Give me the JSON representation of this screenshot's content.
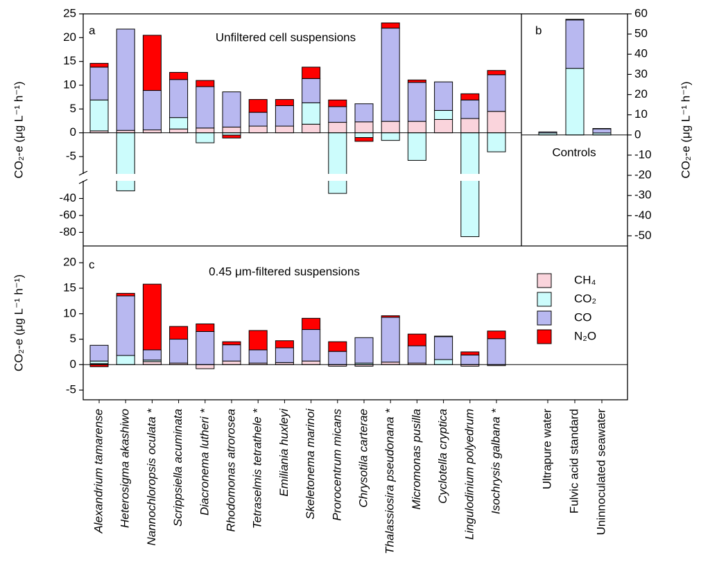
{
  "chart_data": [
    {
      "type": "bar",
      "stacked": true,
      "panel_label": "a",
      "title": "Unfiltered cell suspensions",
      "ylabel": "CO₂-e (μg L⁻¹ h⁻¹)",
      "categories": [
        "Alexandrium tamarense",
        "Heterosigma akashiwo",
        "Nannochloropsis oculata *",
        "Scrippsiella acuminata",
        "Diacronema lutheri *",
        "Rhodomonas atrorosea",
        "Tetraselmis tetrathele *",
        "Emiliania huxleyi",
        "Skeletonema marinoi",
        "Prorocentrum micans",
        "Chrysotila carterae",
        "Thalassiosira pseudonana *",
        "Micromonas  pusilla",
        "Cyclotella cryptica",
        "Lingulodinium polyedrum",
        "Isochrysis galbana *"
      ],
      "series": [
        {
          "color": "#fad4dc",
          "values": [
            0.4,
            0.5,
            0.6,
            0.8,
            1.0,
            1.2,
            1.4,
            1.4,
            1.8,
            2.2,
            2.3,
            2.4,
            2.4,
            2.8,
            3.0,
            4.5
          ]
        },
        {
          "color": "#ccfcfc",
          "values": [
            6.5,
            -31,
            0,
            2.4,
            -2.1,
            -0.5,
            0,
            0,
            4.5,
            -34,
            -1.0,
            -1.6,
            -5.8,
            1.9,
            -85,
            -4.0
          ]
        },
        {
          "color": "#b8b8f0",
          "values": [
            6.9,
            21.3,
            8.3,
            8.0,
            8.7,
            7.4,
            2.9,
            4.3,
            5.1,
            3.3,
            3.8,
            19.6,
            8.2,
            6.0,
            3.9,
            7.7
          ]
        },
        {
          "color": "#ff0000",
          "values": [
            0.8,
            0,
            11.6,
            1.5,
            1.3,
            -0.6,
            2.7,
            1.3,
            2.4,
            1.4,
            -0.8,
            1.1,
            0.5,
            0,
            1.3,
            0.9
          ]
        }
      ],
      "ylim": [
        -96,
        25
      ],
      "ybreak": [
        -20,
        -8.5
      ],
      "yticks": [
        -80,
        -60,
        -40,
        -5,
        0,
        5,
        10,
        15,
        20,
        25
      ]
    },
    {
      "type": "bar",
      "stacked": true,
      "panel_label": "b",
      "title": "Controls",
      "ylabel": "CO₂-e (μg L⁻¹ h⁻¹)",
      "y_axis_side": "right",
      "categories": [
        "Ultrapure water",
        "Fulvic acid standard",
        "Uninnoculated seawater"
      ],
      "series": [
        {
          "color": "#fad4dc",
          "values": [
            0,
            0,
            0
          ]
        },
        {
          "color": "#ccfcfc",
          "values": [
            1.0,
            33,
            1.0
          ]
        },
        {
          "color": "#b8b8f0",
          "values": [
            0.5,
            24,
            2.0
          ]
        },
        {
          "color": "#ff0000",
          "values": [
            0,
            0.3,
            0.2
          ]
        }
      ],
      "ylim": [
        -55,
        60
      ],
      "yticks": [
        -50,
        -40,
        -30,
        -20,
        -10,
        0,
        10,
        20,
        30,
        40,
        50,
        60
      ]
    },
    {
      "type": "bar",
      "stacked": true,
      "panel_label": "c",
      "title": "0.45 μm-filtered suspensions",
      "ylabel": "CO₂-e (μg L⁻¹ h⁻¹)",
      "legend": "upper right",
      "series": [
        {
          "name": "CH₄",
          "color": "#fad4dc",
          "values": [
            0.2,
            0,
            0.6,
            0.3,
            -0.8,
            0.7,
            0.3,
            0.4,
            0.7,
            -0.3,
            -0.3,
            0.5,
            0.3,
            0,
            -0.3,
            -0.2
          ]
        },
        {
          "name": "CO₂",
          "color": "#ccfcfc",
          "values": [
            0.5,
            1.8,
            0.3,
            0,
            0,
            0,
            0,
            0,
            0,
            0,
            0.3,
            0,
            0,
            1.0,
            0,
            0
          ]
        },
        {
          "name": "CO",
          "color": "#b8b8f0",
          "values": [
            3.1,
            11.7,
            2.0,
            4.7,
            6.5,
            3.2,
            2.6,
            2.9,
            6.2,
            2.6,
            5.0,
            8.8,
            3.4,
            4.5,
            1.9,
            5.1
          ]
        },
        {
          "name": "N₂O",
          "color": "#ff0000",
          "values": [
            -0.4,
            0.5,
            12.9,
            2.5,
            1.5,
            0.6,
            3.8,
            1.4,
            2.2,
            1.9,
            0,
            0.3,
            2.3,
            0.1,
            0.6,
            1.5
          ]
        }
      ],
      "ylim": [
        -6.9,
        23.3
      ],
      "yticks": [
        -5,
        0,
        5,
        10,
        15,
        20
      ]
    }
  ]
}
